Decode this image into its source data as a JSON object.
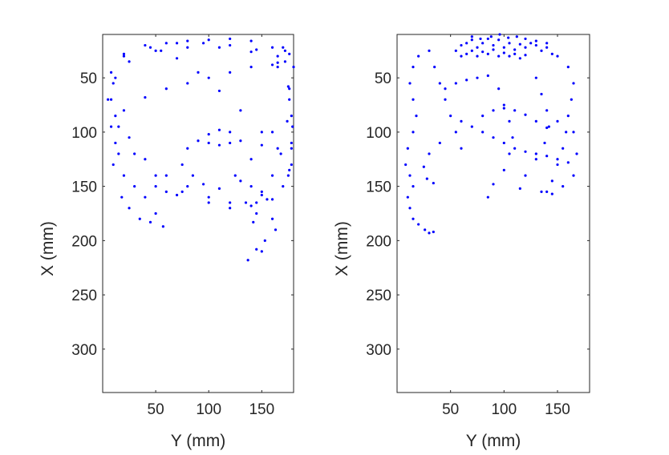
{
  "chart_data": [
    {
      "type": "scatter",
      "title": "",
      "xlabel": "Y (mm)",
      "ylabel": "X (mm)",
      "xlim": [
        0,
        180
      ],
      "ylim": [
        10,
        340
      ],
      "y_reversed": true,
      "xticks": [
        "50",
        "100",
        "150"
      ],
      "yticks": [
        "50",
        "100",
        "150",
        "200",
        "250",
        "300"
      ],
      "grid": false,
      "color": "#0000ff",
      "series": [
        {
          "values": [
            [
              10,
              55
            ],
            [
              20,
              30
            ],
            [
              40,
              20
            ],
            [
              60,
              18
            ],
            [
              80,
              16
            ],
            [
              100,
              15
            ],
            [
              120,
              14
            ],
            [
              140,
              16
            ],
            [
              160,
              22
            ],
            [
              172,
              35
            ],
            [
              176,
              60
            ],
            [
              174,
              90
            ],
            [
              168,
              120
            ],
            [
              160,
              140
            ],
            [
              150,
              155
            ],
            [
              135,
              165
            ],
            [
              120,
              165
            ],
            [
              100,
              160
            ],
            [
              80,
              150
            ],
            [
              60,
              140
            ],
            [
              40,
              125
            ],
            [
              25,
              105
            ],
            [
              12,
              85
            ],
            [
              8,
              70
            ],
            [
              12,
              50
            ],
            [
              25,
              35
            ],
            [
              50,
              25
            ],
            [
              80,
              22
            ],
            [
              110,
              22
            ],
            [
              140,
              26
            ],
            [
              165,
              40
            ],
            [
              176,
              70
            ],
            [
              178,
              110
            ],
            [
              176,
              135
            ],
            [
              170,
              150
            ],
            [
              155,
              162
            ],
            [
              140,
              168
            ],
            [
              120,
              170
            ],
            [
              100,
              165
            ],
            [
              75,
              155
            ],
            [
              50,
              140
            ],
            [
              30,
              120
            ],
            [
              15,
              95
            ],
            [
              5,
              70
            ],
            [
              8,
              45
            ],
            [
              20,
              28
            ],
            [
              45,
              22
            ],
            [
              70,
              18
            ],
            [
              95,
              18
            ],
            [
              120,
              20
            ],
            [
              145,
              24
            ],
            [
              165,
              36
            ],
            [
              175,
              58
            ],
            [
              178,
              85
            ],
            [
              178,
              115
            ],
            [
              175,
              140
            ],
            [
              30,
              150
            ],
            [
              40,
              160
            ],
            [
              50,
              175
            ],
            [
              57,
              187
            ],
            [
              20,
              140
            ],
            [
              18,
              160
            ],
            [
              25,
              170
            ],
            [
              35,
              180
            ],
            [
              45,
              183
            ],
            [
              10,
              130
            ],
            [
              15,
              120
            ],
            [
              12,
              110
            ],
            [
              178,
              130
            ],
            [
              165,
              115
            ],
            [
              150,
              100
            ],
            [
              130,
              80
            ],
            [
              110,
              62
            ],
            [
              90,
              45
            ],
            [
              70,
              32
            ],
            [
              55,
              25
            ],
            [
              110,
              152
            ],
            [
              125,
              140
            ],
            [
              140,
              125
            ],
            [
              150,
              112
            ],
            [
              160,
              100
            ],
            [
              8,
              95
            ],
            [
              20,
              80
            ],
            [
              40,
              68
            ],
            [
              60,
              60
            ],
            [
              80,
              55
            ],
            [
              100,
              50
            ],
            [
              120,
              45
            ],
            [
              140,
              40
            ],
            [
              160,
              38
            ],
            [
              145,
              165
            ],
            [
              145,
              175
            ],
            [
              142,
              183
            ],
            [
              160,
              180
            ],
            [
              163,
              190
            ],
            [
              153,
              200
            ],
            [
              145,
              208
            ],
            [
              137,
              218
            ],
            [
              150,
              210
            ],
            [
              100,
              110
            ],
            [
              110,
              112
            ],
            [
              120,
              110
            ],
            [
              130,
              108
            ],
            [
              120,
              100
            ],
            [
              110,
              98
            ],
            [
              100,
              102
            ],
            [
              90,
              108
            ],
            [
              80,
              115
            ],
            [
              75,
              130
            ],
            [
              85,
              140
            ],
            [
              95,
              148
            ],
            [
              50,
              150
            ],
            [
              60,
              155
            ],
            [
              70,
              158
            ],
            [
              130,
              145
            ],
            [
              140,
              150
            ],
            [
              150,
              158
            ],
            [
              160,
              162
            ],
            [
              170,
              22
            ],
            [
              165,
              30
            ],
            [
              172,
              25
            ],
            [
              176,
              28
            ],
            [
              180,
              40
            ],
            [
              181,
              60
            ],
            [
              179,
              95
            ]
          ]
        }
      ]
    },
    {
      "type": "scatter",
      "title": "",
      "xlabel": "Y (mm)",
      "ylabel": "X (mm)",
      "xlim": [
        0,
        180
      ],
      "ylim": [
        10,
        340
      ],
      "y_reversed": true,
      "xticks": [
        "50",
        "100",
        "150"
      ],
      "yticks": [
        "50",
        "100",
        "150",
        "200",
        "250",
        "300"
      ],
      "grid": false,
      "color": "#0000ff",
      "series": [
        {
          "values": [
            [
              55,
              25
            ],
            [
              60,
              20
            ],
            [
              65,
              18
            ],
            [
              70,
              15
            ],
            [
              75,
              22
            ],
            [
              80,
              18
            ],
            [
              85,
              14
            ],
            [
              90,
              20
            ],
            [
              95,
              15
            ],
            [
              100,
              22
            ],
            [
              105,
              18
            ],
            [
              110,
              24
            ],
            [
              115,
              19
            ],
            [
              120,
              22
            ],
            [
              125,
              18
            ],
            [
              130,
              20
            ],
            [
              135,
              25
            ],
            [
              140,
              22
            ],
            [
              145,
              28
            ],
            [
              60,
              30
            ],
            [
              65,
              28
            ],
            [
              70,
              25
            ],
            [
              75,
              30
            ],
            [
              80,
              26
            ],
            [
              85,
              28
            ],
            [
              90,
              24
            ],
            [
              95,
              30
            ],
            [
              100,
              27
            ],
            [
              105,
              30
            ],
            [
              110,
              28
            ],
            [
              115,
              32
            ],
            [
              120,
              29
            ],
            [
              70,
              12
            ],
            [
              78,
              14
            ],
            [
              88,
              12
            ],
            [
              96,
              10
            ],
            [
              104,
              13
            ],
            [
              112,
              12
            ],
            [
              120,
              14
            ],
            [
              130,
              16
            ],
            [
              140,
              18
            ],
            [
              20,
              30
            ],
            [
              15,
              40
            ],
            [
              12,
              55
            ],
            [
              15,
              70
            ],
            [
              18,
              85
            ],
            [
              15,
              100
            ],
            [
              10,
              115
            ],
            [
              30,
              25
            ],
            [
              35,
              40
            ],
            [
              40,
              55
            ],
            [
              45,
              70
            ],
            [
              50,
              85
            ],
            [
              55,
              100
            ],
            [
              60,
              115
            ],
            [
              150,
              30
            ],
            [
              160,
              40
            ],
            [
              165,
              55
            ],
            [
              163,
              70
            ],
            [
              160,
              85
            ],
            [
              158,
              100
            ],
            [
              155,
              115
            ],
            [
              150,
              130
            ],
            [
              145,
              145
            ],
            [
              140,
              155
            ],
            [
              130,
              50
            ],
            [
              135,
              65
            ],
            [
              140,
              80
            ],
            [
              142,
              95
            ],
            [
              138,
              110
            ],
            [
              130,
              125
            ],
            [
              120,
              140
            ],
            [
              115,
              152
            ],
            [
              95,
              60
            ],
            [
              100,
              75
            ],
            [
              105,
              90
            ],
            [
              108,
              105
            ],
            [
              105,
              120
            ],
            [
              100,
              135
            ],
            [
              90,
              148
            ],
            [
              85,
              160
            ],
            [
              60,
              90
            ],
            [
              70,
              95
            ],
            [
              80,
              100
            ],
            [
              90,
              105
            ],
            [
              100,
              110
            ],
            [
              110,
              115
            ],
            [
              120,
              118
            ],
            [
              130,
              120
            ],
            [
              140,
              122
            ],
            [
              150,
              125
            ],
            [
              160,
              128
            ],
            [
              40,
              110
            ],
            [
              30,
              120
            ],
            [
              25,
              132
            ],
            [
              28,
              143
            ],
            [
              34,
              147
            ],
            [
              8,
              130
            ],
            [
              12,
              140
            ],
            [
              15,
              150
            ],
            [
              10,
              160
            ],
            [
              12,
              170
            ],
            [
              15,
              180
            ],
            [
              20,
              185
            ],
            [
              26,
              190
            ],
            [
              30,
              193
            ],
            [
              34,
              192
            ],
            [
              135,
              155
            ],
            [
              145,
              157
            ],
            [
              155,
              150
            ],
            [
              165,
              140
            ],
            [
              168,
              120
            ],
            [
              165,
              100
            ],
            [
              150,
              90
            ],
            [
              80,
              85
            ],
            [
              90,
              80
            ],
            [
              100,
              78
            ],
            [
              110,
              80
            ],
            [
              120,
              84
            ],
            [
              130,
              90
            ],
            [
              140,
              96
            ],
            [
              45,
              60
            ],
            [
              55,
              55
            ],
            [
              65,
              52
            ],
            [
              75,
              50
            ],
            [
              85,
              48
            ]
          ]
        }
      ]
    }
  ]
}
